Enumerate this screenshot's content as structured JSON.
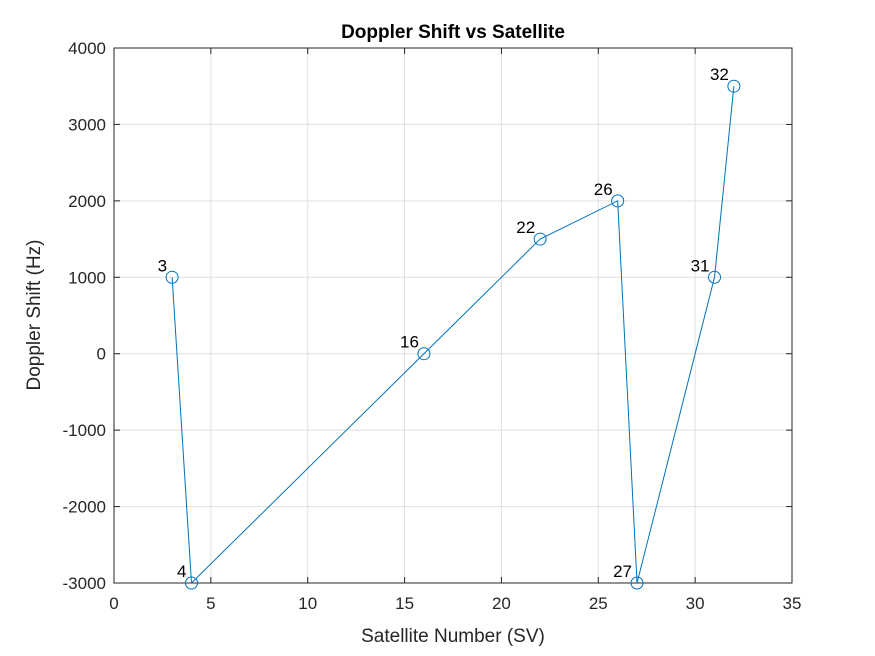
{
  "chart_data": {
    "type": "line",
    "title": "Doppler Shift vs Satellite",
    "xlabel": "Satellite Number (SV)",
    "ylabel": "Doppler Shift (Hz)",
    "xlim": [
      0,
      35
    ],
    "ylim": [
      -3000,
      4000
    ],
    "xticks": [
      0,
      5,
      10,
      15,
      20,
      25,
      30,
      35
    ],
    "yticks": [
      -3000,
      -2000,
      -1000,
      0,
      1000,
      2000,
      3000,
      4000
    ],
    "grid": true,
    "series": [
      {
        "marker": "circle",
        "color": "#0072BD",
        "x": [
          3,
          4,
          16,
          22,
          26,
          27,
          31,
          32
        ],
        "y": [
          1000,
          -3000,
          0,
          1500,
          2000,
          -3000,
          1000,
          3500
        ],
        "point_labels": [
          "3",
          "4",
          "16",
          "22",
          "26",
          "27",
          "31",
          "32"
        ]
      }
    ]
  }
}
